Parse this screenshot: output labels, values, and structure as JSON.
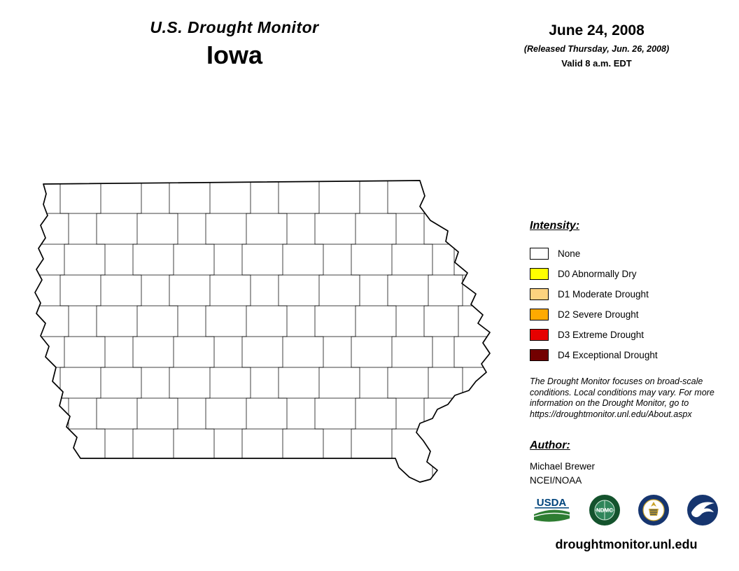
{
  "header": {
    "title": "U.S. Drought Monitor",
    "region": "Iowa",
    "date": "June 24, 2008",
    "released": "(Released Thursday, Jun. 26, 2008)",
    "valid": "Valid 8 a.m. EDT"
  },
  "map": {
    "state": "Iowa",
    "all_counties_intensity": "None"
  },
  "legend": {
    "heading": "Intensity:",
    "items": [
      {
        "code": "none",
        "label": "None",
        "color": "#FFFFFF"
      },
      {
        "code": "d0",
        "label": "D0 Abnormally Dry",
        "color": "#FFFF00"
      },
      {
        "code": "d1",
        "label": "D1 Moderate Drought",
        "color": "#FCD37F"
      },
      {
        "code": "d2",
        "label": "D2 Severe Drought",
        "color": "#FFAA00"
      },
      {
        "code": "d3",
        "label": "D3 Extreme Drought",
        "color": "#E60000"
      },
      {
        "code": "d4",
        "label": "D4 Exceptional Drought",
        "color": "#730000"
      }
    ]
  },
  "disclaimer": "The Drought Monitor focuses on broad-scale conditions. Local conditions may vary. For more information on the Drought Monitor, go to https://droughtmonitor.unl.edu/About.aspx",
  "author": {
    "heading": "Author:",
    "name": "Michael Brewer",
    "org": "NCEI/NOAA"
  },
  "logos": [
    {
      "name": "usda-logo",
      "label": "USDA"
    },
    {
      "name": "ndmc-logo",
      "label": "NDMC"
    },
    {
      "name": "commerce-seal-logo",
      "label": ""
    },
    {
      "name": "noaa-logo",
      "label": ""
    }
  ],
  "footer": {
    "url": "droughtmonitor.unl.edu"
  }
}
